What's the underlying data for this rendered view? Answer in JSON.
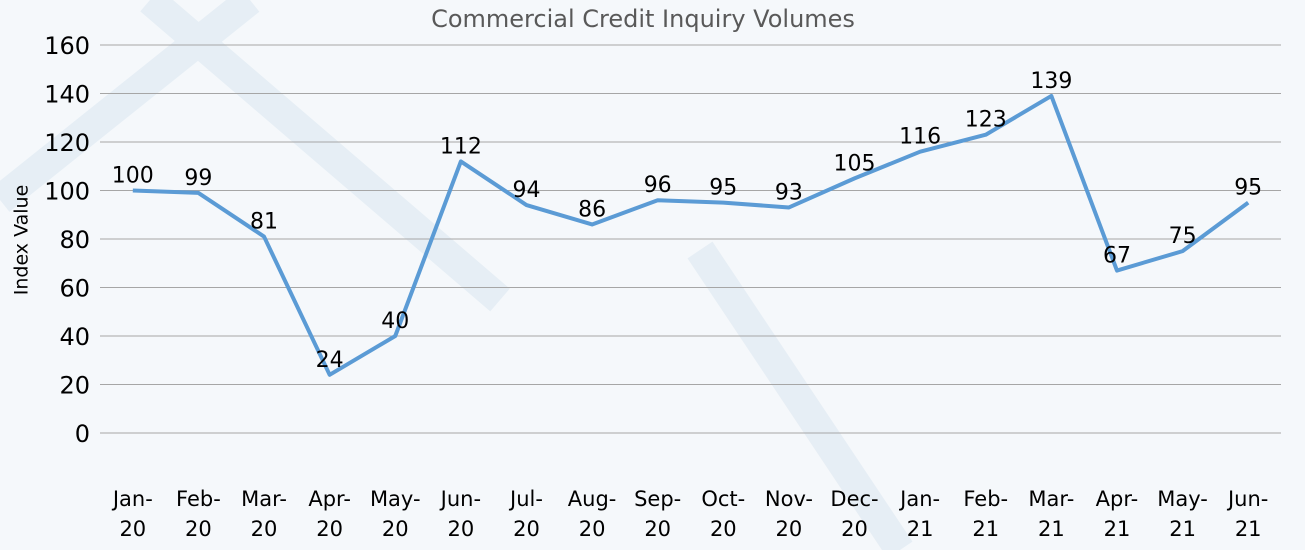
{
  "chart_data": {
    "type": "line",
    "title": "Commercial Credit Inquiry Volumes",
    "y_label": "Index Value",
    "categories": [
      "Jan-20",
      "Feb-20",
      "Mar-20",
      "Apr-20",
      "May-20",
      "Jun-20",
      "Jul-20",
      "Aug-20",
      "Sep-20",
      "Oct-20",
      "Nov-20",
      "Dec-20",
      "Jan-21",
      "Feb-21",
      "Mar-21",
      "Apr-21",
      "May-21",
      "Jun-21"
    ],
    "values": [
      100,
      99,
      81,
      24,
      40,
      112,
      94,
      86,
      96,
      95,
      93,
      105,
      116,
      123,
      139,
      67,
      75,
      95
    ],
    "color": "#5b9bd5",
    "ylim": [
      0,
      160
    ],
    "yticks": [
      0,
      20,
      40,
      60,
      80,
      100,
      120,
      140,
      160
    ],
    "grid": true
  }
}
